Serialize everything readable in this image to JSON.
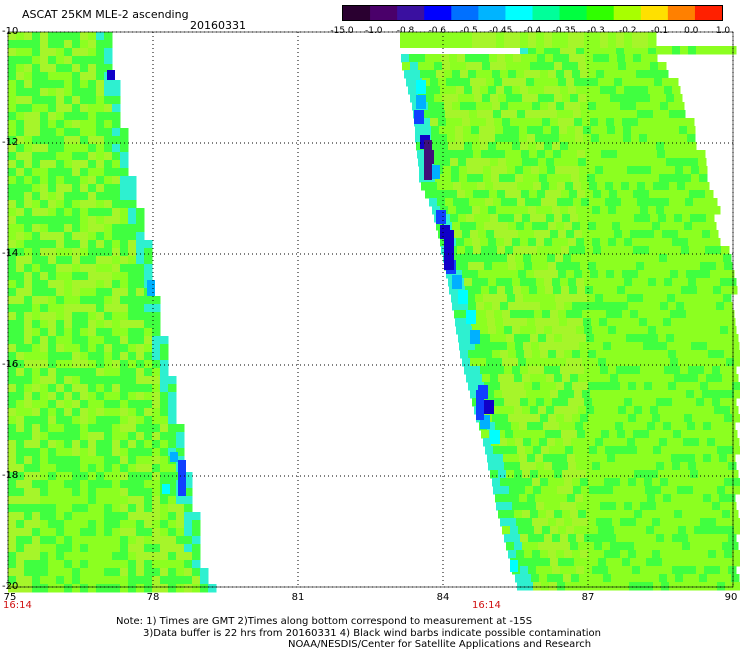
{
  "header": {
    "title": "ASCAT 25KM MLE-2 ascending",
    "date": "20160331"
  },
  "colorbar": {
    "labels": [
      "-15.0",
      "-1.0",
      "-0.8",
      "-0.6",
      "-0.5",
      "-0.45",
      "-0.4",
      "-0.35",
      "-0.3",
      "-0.2",
      "-0.1",
      "0.0",
      "1.0"
    ],
    "colors": [
      "#2a0030",
      "#4a006a",
      "#3a10a0",
      "#0000ff",
      "#0070ff",
      "#00b4ff",
      "#00ffff",
      "#00ff9a",
      "#00ff40",
      "#30ff00",
      "#a8ff00",
      "#ffe000",
      "#ff8000",
      "#ff2000"
    ]
  },
  "map": {
    "lat_labels": [
      "-10",
      "-12",
      "-14",
      "-16",
      "-18",
      "-20"
    ],
    "lon_labels": [
      "75",
      "78",
      "81",
      "84",
      "87",
      "90"
    ],
    "time_labels": [
      "16:14",
      "16:14"
    ],
    "colors": {
      "lime": "#a6f52a",
      "green": "#40ff40",
      "yellowgreen": "#8cff20",
      "aqua": "#2ef0d0",
      "cyan": "#00ffff",
      "skyblue": "#00b0ff",
      "blue": "#1040ff",
      "darkblue": "#1000c8",
      "indigo": "#40107a"
    }
  },
  "notes": {
    "line1": "Note: 1) Times are GMT 2)Times along bottom correspond to measurement at -15S",
    "line2": "3)Data buffer is 22 hrs from 20160331 4) Black wind barbs indicate possible contamination",
    "line3": "NOAA/NESDIS/Center for Satellite Applications and Research"
  }
}
